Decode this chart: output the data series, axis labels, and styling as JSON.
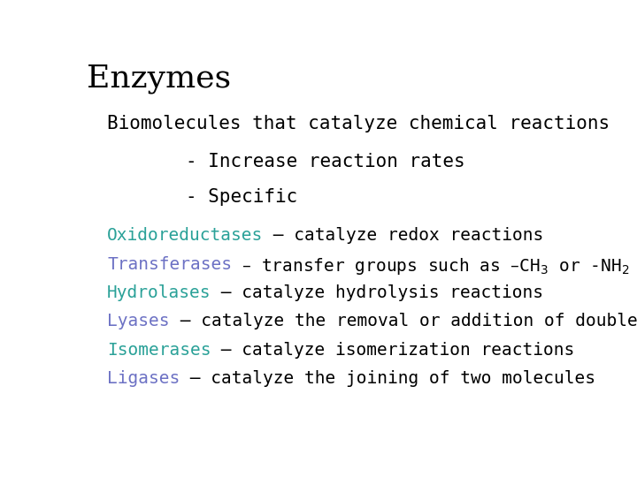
{
  "title": "Enzymes",
  "title_fontsize": 26,
  "title_color": "#000000",
  "subtitle": "Biomolecules that catalyze chemical reactions",
  "subtitle_fontsize": 15,
  "subtitle_color": "#000000",
  "bullet1": "- Increase reaction rates",
  "bullet2": "- Specific",
  "bullet_fontsize": 15,
  "bullet_color": "#000000",
  "background_color": "#ffffff",
  "lines": [
    {
      "colored_word": "Oxidoreductases",
      "colored_word_color": "#2aa198",
      "rest": " – catalyze redox reactions",
      "rest_color": "#000000",
      "fontsize": 14,
      "has_subscript": false
    },
    {
      "colored_word": "Transferases",
      "colored_word_color": "#6c71c4",
      "rest": " – transfer groups such as –CH$_3$ or -NH$_2$",
      "rest_color": "#000000",
      "fontsize": 14,
      "has_subscript": true
    },
    {
      "colored_word": "Hydrolases",
      "colored_word_color": "#2aa198",
      "rest": " – catalyze hydrolysis reactions",
      "rest_color": "#000000",
      "fontsize": 14,
      "has_subscript": false
    },
    {
      "colored_word": "Lyases",
      "colored_word_color": "#6c71c4",
      "rest": " – catalyze the removal or addition of double bonds",
      "rest_color": "#000000",
      "fontsize": 14,
      "has_subscript": false
    },
    {
      "colored_word": "Isomerases",
      "colored_word_color": "#2aa198",
      "rest": " – catalyze isomerization reactions",
      "rest_color": "#000000",
      "fontsize": 14,
      "has_subscript": false
    },
    {
      "colored_word": "Ligases",
      "colored_word_color": "#6c71c4",
      "rest": " – catalyze the joining of two molecules",
      "rest_color": "#000000",
      "fontsize": 14,
      "has_subscript": false
    }
  ]
}
